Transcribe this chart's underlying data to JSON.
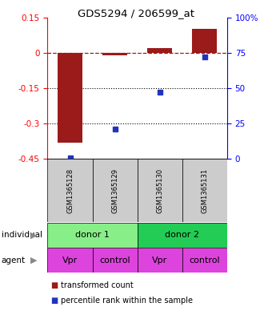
{
  "title": "GDS5294 / 206599_at",
  "samples": [
    "GSM1365128",
    "GSM1365129",
    "GSM1365130",
    "GSM1365131"
  ],
  "red_values": [
    -0.38,
    -0.01,
    0.02,
    0.1
  ],
  "blue_values_pct": [
    1,
    21,
    47,
    72
  ],
  "ylim_left": [
    -0.45,
    0.15
  ],
  "ylim_right": [
    0,
    100
  ],
  "yticks_left": [
    0.15,
    0,
    -0.15,
    -0.3,
    -0.45
  ],
  "yticks_right": [
    100,
    75,
    50,
    25,
    0
  ],
  "hlines_dotted": [
    -0.15,
    -0.3
  ],
  "hline_dashed": 0,
  "bar_color": "#9b1a1a",
  "dot_color": "#2233bb",
  "sample_bg_color": "#cccccc",
  "donor1_color": "#88ee88",
  "donor2_color": "#22cc55",
  "agent_color": "#dd44dd",
  "agent_labels": [
    "Vpr",
    "control",
    "Vpr",
    "control"
  ],
  "legend_red": "transformed count",
  "legend_blue": "percentile rank within the sample"
}
